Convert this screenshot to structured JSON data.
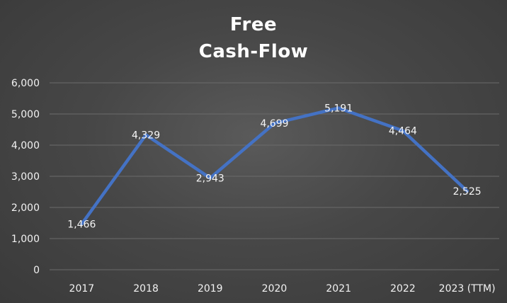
{
  "chart_data": {
    "type": "line",
    "title_lines": [
      "Free",
      "Cash-Flow"
    ],
    "categories": [
      "2017",
      "2018",
      "2019",
      "2020",
      "2021",
      "2022",
      "2023 (TTM)"
    ],
    "series": [
      {
        "values": [
          1466,
          4329,
          2943,
          4699,
          5191,
          4464,
          2525
        ],
        "labels": [
          "1,466",
          "4,329",
          "2,943",
          "4,699",
          "5,191",
          "4,464",
          "2,525"
        ],
        "color": "#4472C4"
      }
    ],
    "ylim": [
      0,
      6000
    ],
    "yticks": [
      "0",
      "1,000",
      "2,000",
      "3,000",
      "4,000",
      "5,000",
      "6,000"
    ],
    "grid": true,
    "legend": "none",
    "background_color": "#474747",
    "gridline_color": "#6b6b6b",
    "text_color": "#ffffff"
  }
}
